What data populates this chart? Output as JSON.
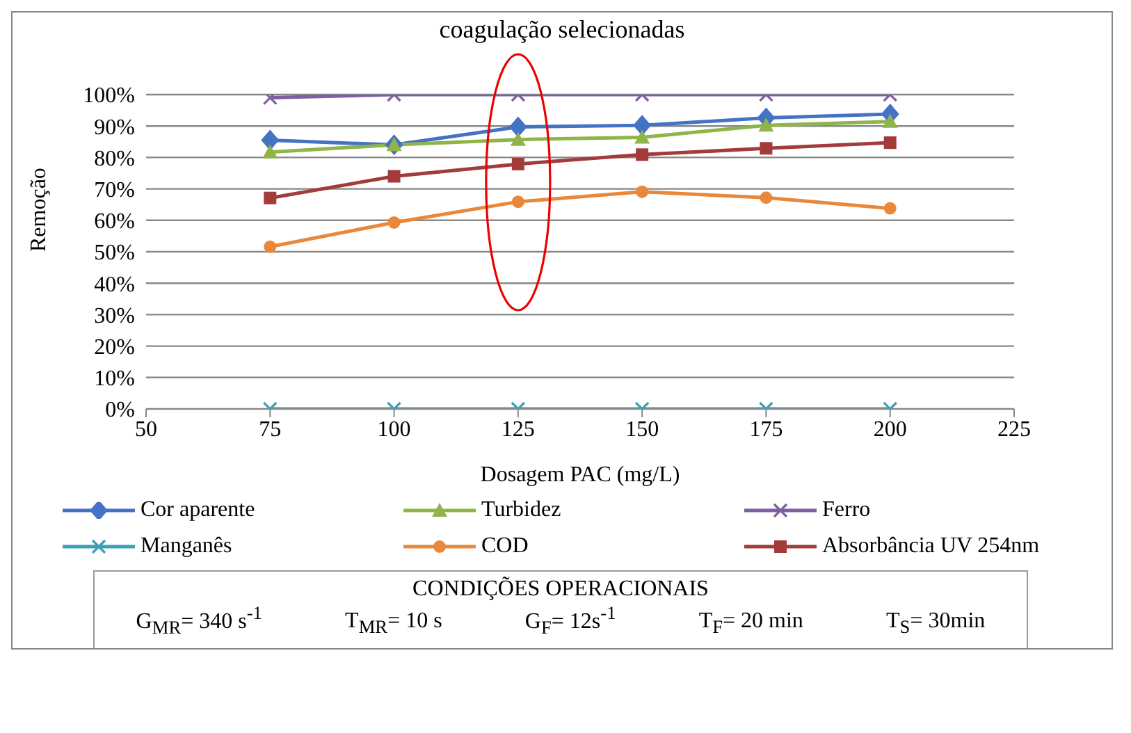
{
  "chart_data": {
    "type": "line",
    "title": "coagulação  selecionadas",
    "xlabel": "Dosagem PAC (mg/L)",
    "ylabel": "Remoção",
    "x": [
      75,
      100,
      125,
      150,
      175,
      200
    ],
    "xlim": [
      50,
      225
    ],
    "xticks": [
      50,
      75,
      100,
      125,
      150,
      175,
      200,
      225
    ],
    "ylim": [
      0,
      100
    ],
    "yticks": [
      {
        "value": 0,
        "label": "0%"
      },
      {
        "value": 10,
        "label": "10%"
      },
      {
        "value": 20,
        "label": "20%"
      },
      {
        "value": 30,
        "label": "30%"
      },
      {
        "value": 40,
        "label": "40%"
      },
      {
        "value": 50,
        "label": "50%"
      },
      {
        "value": 60,
        "label": "60%"
      },
      {
        "value": 70,
        "label": "70%"
      },
      {
        "value": 80,
        "label": "80%"
      },
      {
        "value": 90,
        "label": "90%"
      },
      {
        "value": 100,
        "label": "100%"
      }
    ],
    "grid": "y",
    "legend": "bottom",
    "series": [
      {
        "name": "Cor aparente",
        "color": "#4472c4",
        "marker": "diamond",
        "values": [
          85.5,
          84,
          89.7,
          90.2,
          92.6,
          93.8
        ]
      },
      {
        "name": "Turbidez",
        "color": "#8fb54a",
        "marker": "triangle",
        "values": [
          81.7,
          84,
          85.7,
          86.4,
          90.2,
          91.4
        ]
      },
      {
        "name": "Ferro",
        "color": "#7e5fa2",
        "marker": "cross",
        "values": [
          99,
          100,
          100,
          100,
          100,
          100
        ]
      },
      {
        "name": "Manganês",
        "color": "#3ba0b8",
        "marker": "cross",
        "values": [
          0,
          0,
          0,
          0,
          0,
          0
        ]
      },
      {
        "name": "COD",
        "color": "#e9883a",
        "marker": "circle",
        "values": [
          51.6,
          59.3,
          65.9,
          69.1,
          67.2,
          63.8
        ]
      },
      {
        "name": "Absorbância UV 254nm",
        "color": "#a33b3a",
        "marker": "square",
        "values": [
          67.1,
          74,
          77.9,
          80.9,
          82.9,
          84.7
        ]
      }
    ],
    "annotations": [
      "CONDIÇÕES  OPERACIONAIS",
      "G$_{MR}$=  340  s$^{-1}$",
      "T$_{MR}$=  10  s",
      "G$_{F}$=  12s$^{-1}$",
      "T$_{F}$=  20  min",
      "T$_{S}$=  30min"
    ]
  }
}
